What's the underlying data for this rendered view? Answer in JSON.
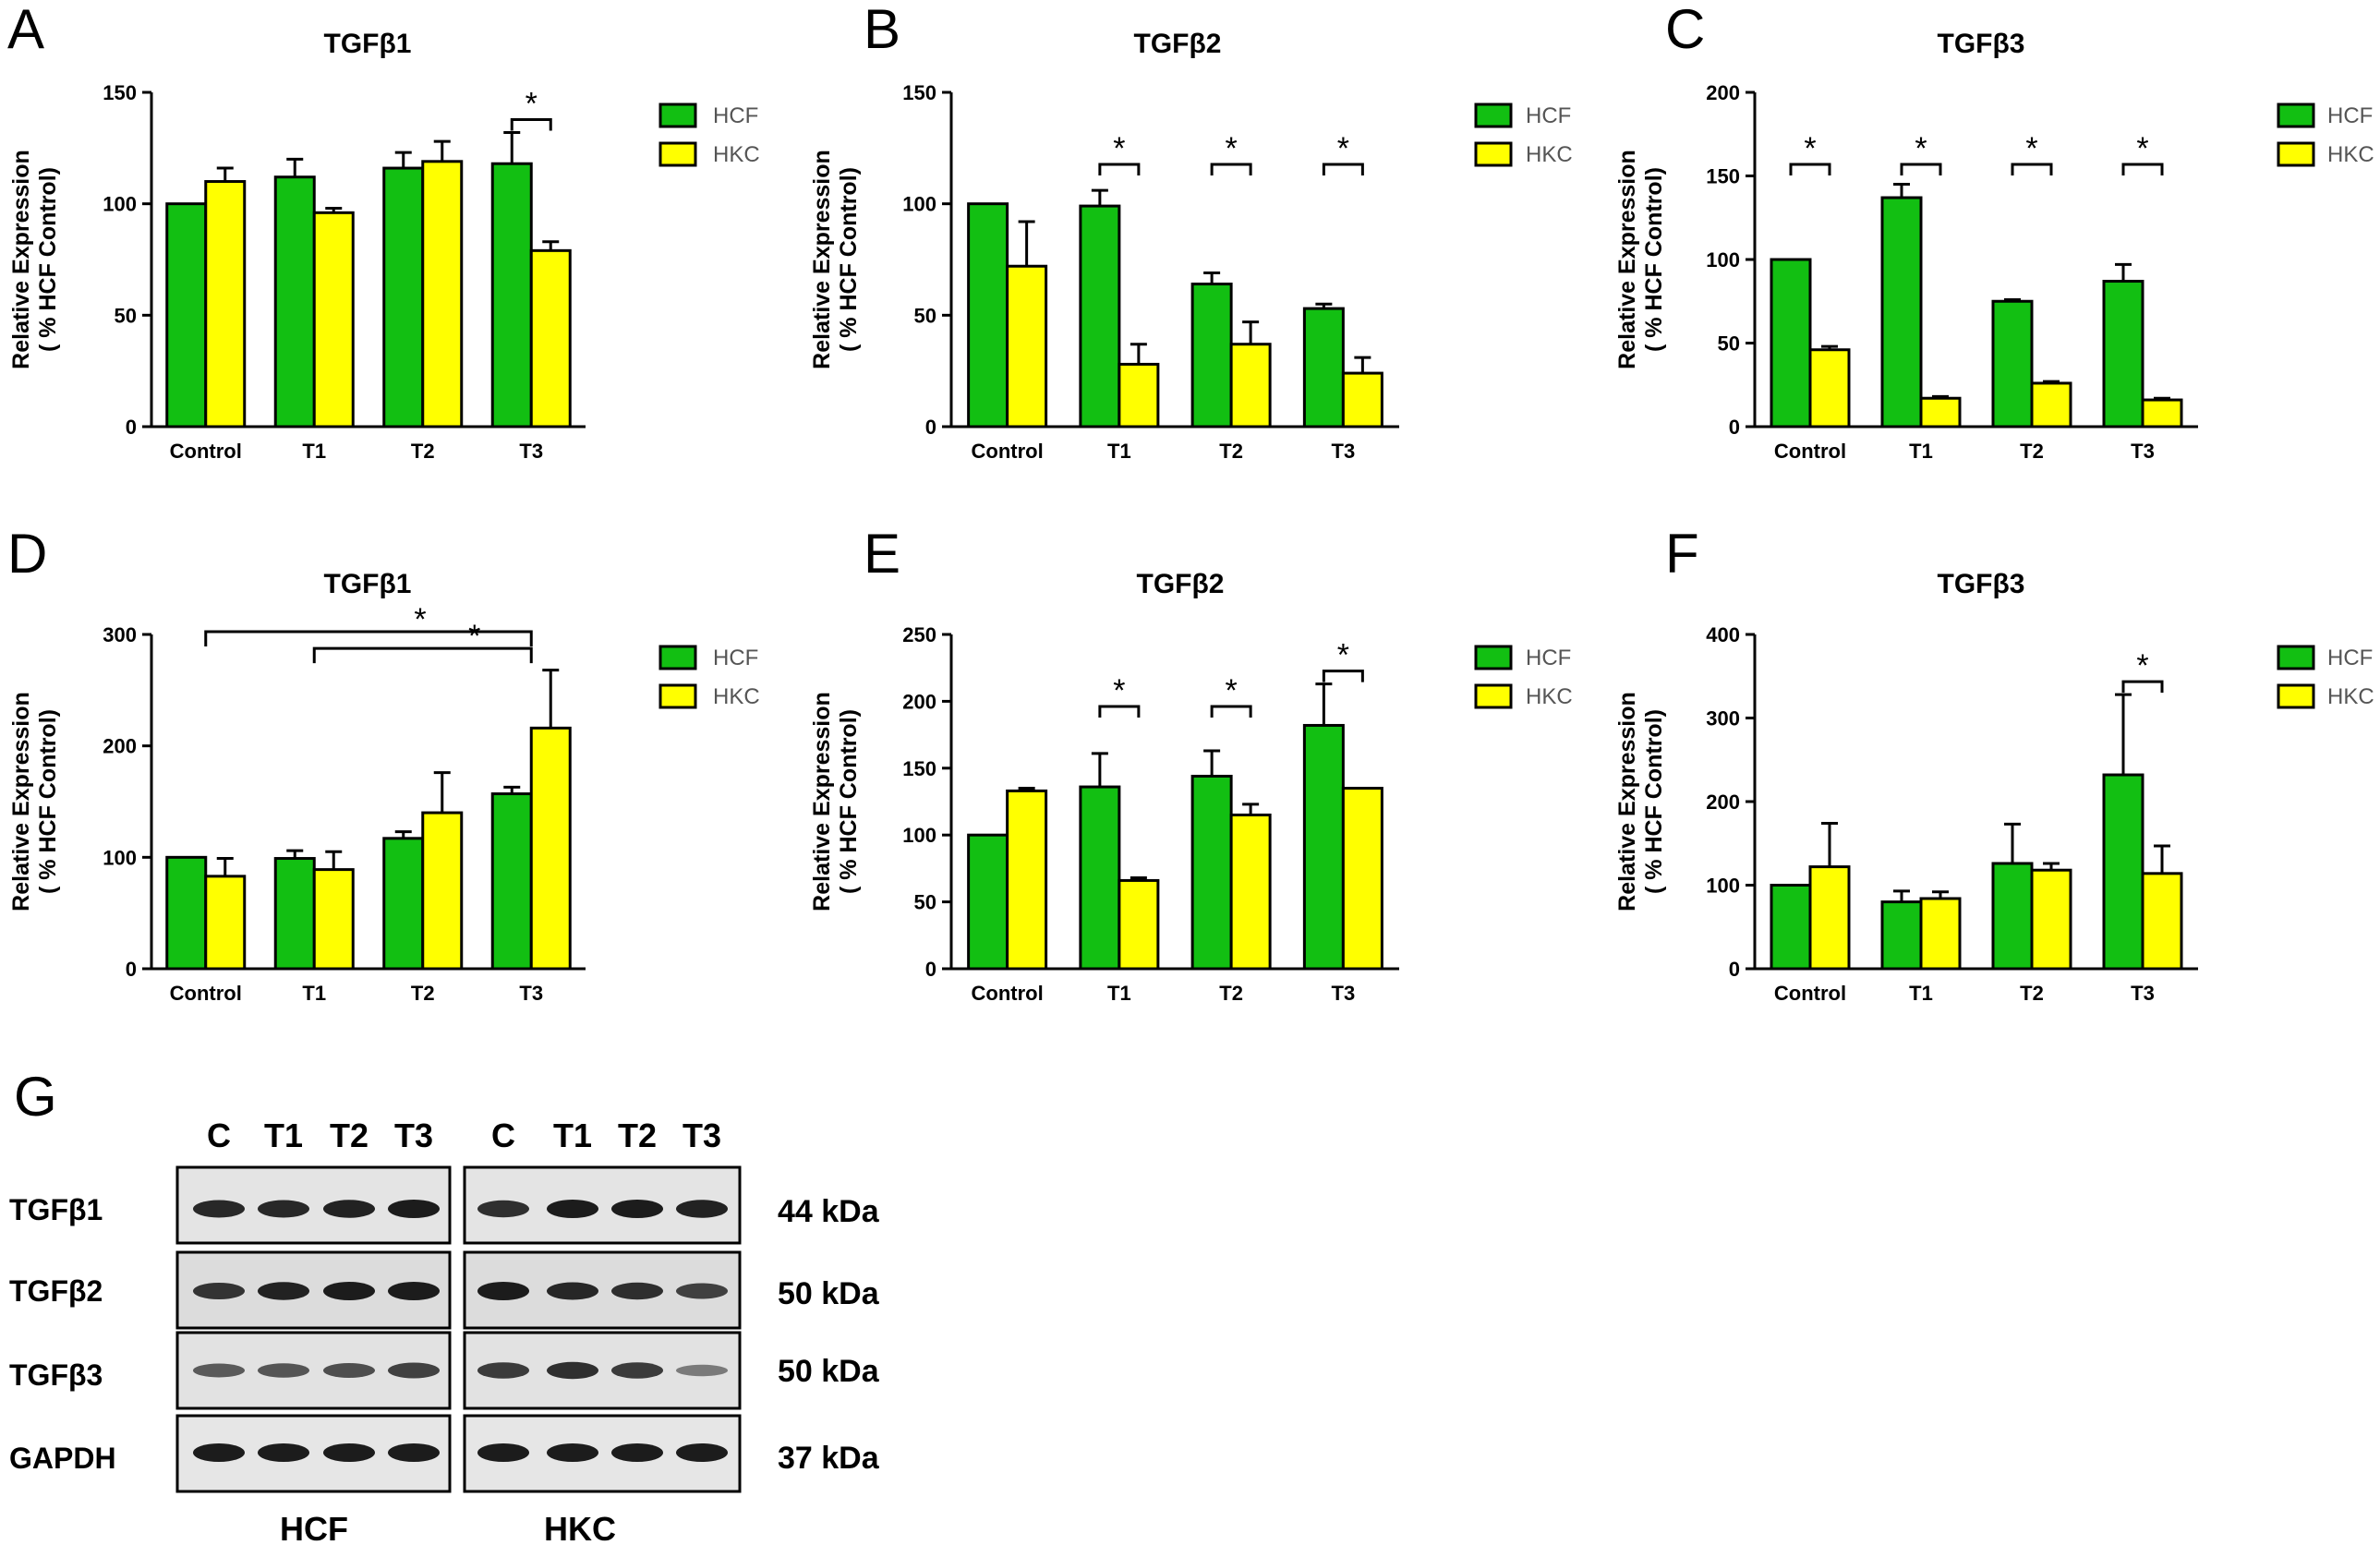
{
  "colors": {
    "hcf": "#12bf12",
    "hkc": "#ffff00",
    "axis": "#000000"
  },
  "chart_data": [
    {
      "panel": "A",
      "type": "bar",
      "title": "TGFβ1",
      "ylabel": [
        "Relative Expression",
        "( % HCF Control)"
      ],
      "categories": [
        "Control",
        "T1",
        "T2",
        "T3"
      ],
      "ylim": [
        0,
        150
      ],
      "yticks": [
        0,
        50,
        100,
        150
      ],
      "series": [
        {
          "name": "HCF",
          "values": [
            100,
            112,
            116,
            118
          ],
          "errors": [
            0,
            8,
            7,
            14
          ]
        },
        {
          "name": "HKC",
          "values": [
            110,
            96,
            119,
            79
          ],
          "errors": [
            6,
            2,
            9,
            4
          ]
        }
      ],
      "significance": [
        {
          "type": "pair",
          "category": 3,
          "label": "*"
        }
      ]
    },
    {
      "panel": "B",
      "type": "bar",
      "title": "TGFβ2",
      "ylabel": [
        "Relative Expression",
        "( % HCF Control)"
      ],
      "categories": [
        "Control",
        "T1",
        "T2",
        "T3"
      ],
      "ylim": [
        0,
        150
      ],
      "yticks": [
        0,
        50,
        100,
        150
      ],
      "series": [
        {
          "name": "HCF",
          "values": [
            100,
            99,
            64,
            53
          ],
          "errors": [
            0,
            7,
            5,
            2
          ]
        },
        {
          "name": "HKC",
          "values": [
            72,
            28,
            37,
            24
          ],
          "errors": [
            20,
            9,
            10,
            7
          ]
        }
      ],
      "significance": [
        {
          "type": "pair",
          "category": 1,
          "label": "*"
        },
        {
          "type": "pair",
          "category": 2,
          "label": "*"
        },
        {
          "type": "pair",
          "category": 3,
          "label": "*"
        }
      ]
    },
    {
      "panel": "C",
      "type": "bar",
      "title": "TGFβ3",
      "ylabel": [
        "Relative Expression",
        "( % HCF Control)"
      ],
      "categories": [
        "Control",
        "T1",
        "T2",
        "T3"
      ],
      "ylim": [
        0,
        200
      ],
      "yticks": [
        0,
        50,
        100,
        150,
        200
      ],
      "series": [
        {
          "name": "HCF",
          "values": [
            100,
            137,
            75,
            87
          ],
          "errors": [
            0,
            8,
            1,
            10
          ]
        },
        {
          "name": "HKC",
          "values": [
            46,
            17,
            26,
            16
          ],
          "errors": [
            2,
            1,
            1,
            1
          ]
        }
      ],
      "significance": [
        {
          "type": "pair",
          "category": 0,
          "label": "*"
        },
        {
          "type": "pair",
          "category": 1,
          "label": "*"
        },
        {
          "type": "pair",
          "category": 2,
          "label": "*"
        },
        {
          "type": "pair",
          "category": 3,
          "label": "*"
        }
      ]
    },
    {
      "panel": "D",
      "type": "bar",
      "title": "TGFβ1",
      "ylabel": [
        "Relative Expression",
        "( % HCF Control)"
      ],
      "categories": [
        "Control",
        "T1",
        "T2",
        "T3"
      ],
      "ylim": [
        0,
        300
      ],
      "yticks": [
        0,
        100,
        200,
        300
      ],
      "series": [
        {
          "name": "HCF",
          "values": [
            100,
            99,
            117,
            157
          ],
          "errors": [
            0,
            7,
            6,
            6
          ]
        },
        {
          "name": "HKC",
          "values": [
            83,
            89,
            140,
            216
          ],
          "errors": [
            16,
            16,
            36,
            52
          ]
        }
      ],
      "significance": [
        {
          "type": "span",
          "from": 0,
          "to": 3,
          "level": 300,
          "label": "*"
        },
        {
          "type": "span",
          "from": 1,
          "to": 3,
          "level": 285,
          "label": "*"
        }
      ]
    },
    {
      "panel": "E",
      "type": "bar",
      "title": "TGFβ2",
      "ylabel": [
        "Relative Expression",
        "( % HCF Control)"
      ],
      "categories": [
        "Control",
        "T1",
        "T2",
        "T3"
      ],
      "ylim": [
        0,
        250
      ],
      "yticks": [
        0,
        50,
        100,
        150,
        200,
        250
      ],
      "series": [
        {
          "name": "HCF",
          "values": [
            100,
            136,
            144,
            182
          ],
          "errors": [
            0,
            25,
            19,
            31
          ]
        },
        {
          "name": "HKC",
          "values": [
            133,
            66,
            115,
            135
          ],
          "errors": [
            2,
            2,
            8,
            0
          ]
        }
      ],
      "significance": [
        {
          "type": "pair",
          "category": 1,
          "label": "*"
        },
        {
          "type": "pair",
          "category": 2,
          "label": "*"
        },
        {
          "type": "pair",
          "category": 3,
          "label": "*"
        }
      ]
    },
    {
      "panel": "F",
      "type": "bar",
      "title": "TGFβ3",
      "ylabel": [
        "Relative Expression",
        "( % HCF Control)"
      ],
      "categories": [
        "Control",
        "T1",
        "T2",
        "T3"
      ],
      "ylim": [
        0,
        400
      ],
      "yticks": [
        0,
        100,
        200,
        300,
        400
      ],
      "series": [
        {
          "name": "HCF",
          "values": [
            100,
            80,
            126,
            232
          ],
          "errors": [
            0,
            13,
            47,
            96
          ]
        },
        {
          "name": "HKC",
          "values": [
            122,
            84,
            118,
            114
          ],
          "errors": [
            52,
            8,
            8,
            33
          ]
        }
      ],
      "significance": [
        {
          "type": "pair",
          "category": 3,
          "label": "*"
        }
      ]
    }
  ],
  "western_blot": {
    "panel": "G",
    "lanes": [
      "C",
      "T1",
      "T2",
      "T3",
      "C",
      "T1",
      "T2",
      "T3"
    ],
    "groups": [
      "HCF",
      "HKC"
    ],
    "rows": [
      {
        "protein": "TGFβ1",
        "size": "44 kDa",
        "intensity": [
          0.9,
          0.9,
          0.95,
          1.0,
          0.85,
          1.0,
          1.0,
          0.95
        ]
      },
      {
        "protein": "TGFβ2",
        "size": "50 kDa",
        "intensity": [
          0.8,
          0.95,
          1.0,
          1.0,
          1.0,
          0.9,
          0.85,
          0.7
        ]
      },
      {
        "protein": "TGFβ3",
        "size": "50 kDa",
        "intensity": [
          0.5,
          0.55,
          0.6,
          0.7,
          0.75,
          0.85,
          0.75,
          0.25
        ]
      },
      {
        "protein": "GAPDH",
        "size": "37 kDa",
        "intensity": [
          1.0,
          1.0,
          1.0,
          1.0,
          1.0,
          1.0,
          1.0,
          1.0
        ]
      }
    ]
  }
}
